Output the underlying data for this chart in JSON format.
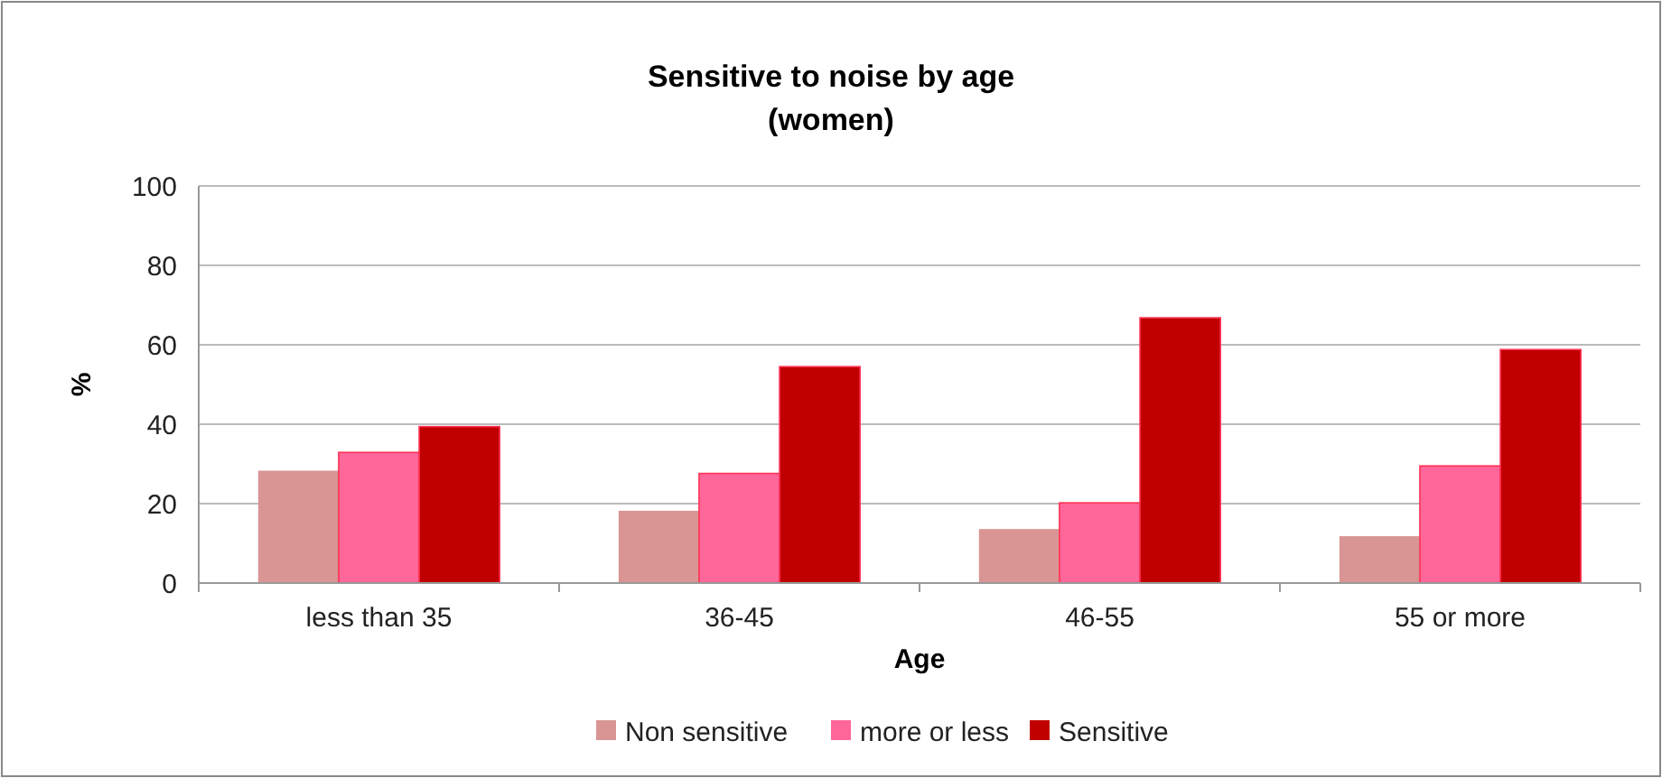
{
  "chart_data": {
    "type": "bar",
    "title": "Sensitive to noise by age\n(women)",
    "xlabel": "Age",
    "ylabel": "%",
    "categories": [
      "less than 35",
      "36-45",
      "46-55",
      "55 or more"
    ],
    "series": [
      {
        "name": "Non sensitive",
        "color": "#d99594",
        "values": [
          28.3,
          18.2,
          13.6,
          11.8
        ]
      },
      {
        "name": "more or less",
        "color": "#ff6699",
        "values": [
          32.9,
          27.6,
          20.2,
          29.5
        ]
      },
      {
        "name": "Sensitive",
        "color": "#c00000",
        "values": [
          39.4,
          54.5,
          66.8,
          58.8
        ]
      }
    ],
    "ylim": [
      0,
      100
    ],
    "yticks": [
      0,
      20,
      40,
      60,
      80,
      100
    ],
    "grid": "y",
    "legend": "bottom"
  }
}
